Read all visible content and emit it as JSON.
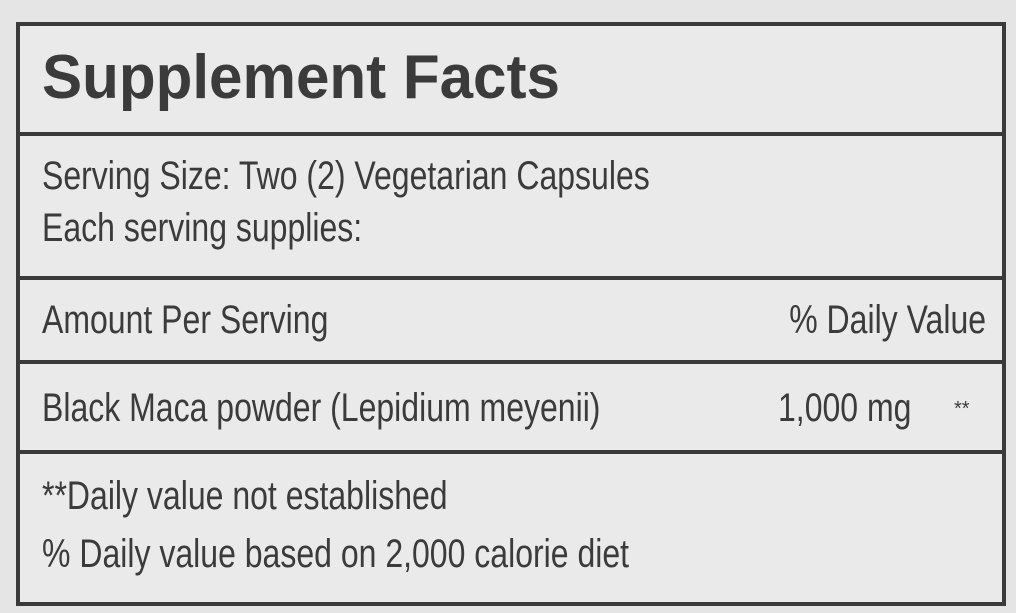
{
  "label": {
    "title": "Supplement Facts",
    "serving_size": "Serving Size: Two (2) Vegetarian Capsules",
    "each_serving": "Each serving supplies:",
    "header": {
      "amount": "Amount Per Serving",
      "daily_value": "% Daily Value"
    },
    "ingredients": [
      {
        "name": "Black Maca powder (Lepidium meyenii)",
        "amount": "1,000 mg",
        "daily_value": "**"
      }
    ],
    "footnotes": [
      "**Daily value not established",
      "% Daily value based on 2,000 calorie diet"
    ]
  }
}
